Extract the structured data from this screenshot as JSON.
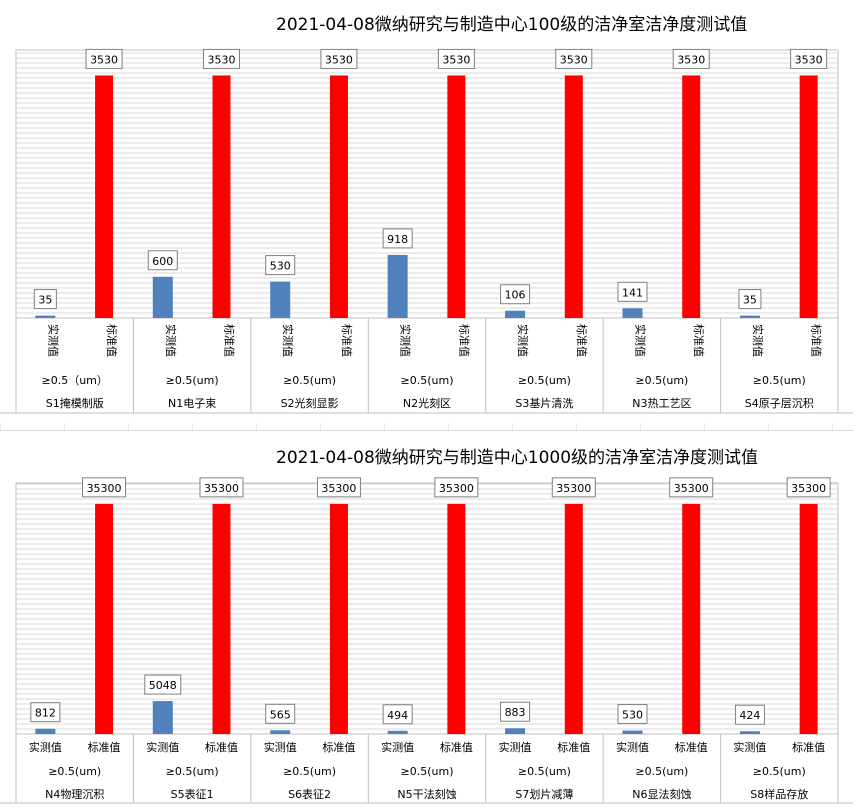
{
  "colors": {
    "measured": "#4f81bd",
    "standard": "#ff0000",
    "grid": "#d9d9d9",
    "axis": "#bfbfbf"
  },
  "chart_data": [
    {
      "type": "bar",
      "title": "2021-04-08微纳研究与制造中心100级的洁净室洁净度测试值",
      "series_labels": [
        "实测值",
        "标准值"
      ],
      "size_labels": [
        "≥0.5（um）",
        "≥0.5(um)",
        "≥0.5(um)",
        "≥0.5(um)",
        "≥0.5(um)",
        "≥0.5(um)",
        "≥0.5(um)"
      ],
      "categories": [
        "S1掩模制版",
        "N1电子束",
        "S2光刻显影",
        "N2光刻区",
        "S3基片清洗",
        "N3热工艺区",
        "S4原子层沉积"
      ],
      "series": [
        {
          "values": [
            35,
            600,
            530,
            918,
            106,
            141,
            35
          ]
        },
        {
          "values": [
            3530,
            3530,
            3530,
            3530,
            3530,
            3530,
            3530
          ]
        }
      ],
      "ylim": [
        0,
        3900
      ],
      "grid": true,
      "vertical_series_labels": true
    },
    {
      "type": "bar",
      "title": "2021-04-08微纳研究与制造中心1000级的洁净室洁净度测试值",
      "series_labels": [
        "实测值",
        "标准值"
      ],
      "size_labels": [
        "≥0.5(um)",
        "≥0.5(um)",
        "≥0.5(um)",
        "≥0.5(um)",
        "≥0.5(um)",
        "≥0.5(um)",
        "≥0.5(um)"
      ],
      "categories": [
        "N4物理沉积",
        "S5表征1",
        "S6表征2",
        "N5干法刻蚀",
        "S7划片减薄",
        "N6显法刻蚀",
        "S8样品存放"
      ],
      "series": [
        {
          "values": [
            812,
            5048,
            565,
            494,
            883,
            530,
            424
          ]
        },
        {
          "values": [
            35300,
            35300,
            35300,
            35300,
            35300,
            35300,
            35300
          ]
        }
      ],
      "ylim": [
        0,
        38500
      ],
      "grid": true,
      "vertical_series_labels": false
    }
  ]
}
